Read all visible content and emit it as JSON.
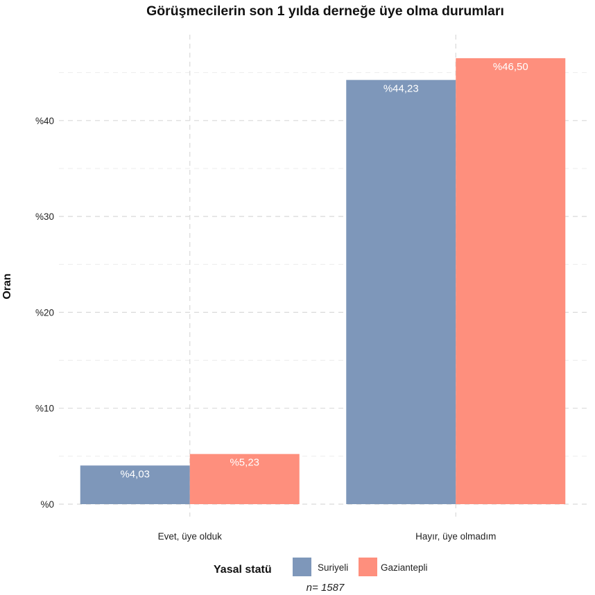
{
  "chart_data": {
    "type": "bar",
    "title": "Görüşmecilerin son 1 yılda derneğe üye olma durumları",
    "ylabel": "Oran",
    "xlabel": "",
    "categories": [
      "Evet, üye olduk",
      "Hayır, üye olmadım"
    ],
    "series": [
      {
        "name": "Suriyeli",
        "color": "#7e97ba",
        "values": [
          4.03,
          44.23
        ],
        "labels": [
          "%4,03",
          "%44,23"
        ]
      },
      {
        "name": "Gaziantepli",
        "color": "#fe8f7d",
        "values": [
          5.23,
          46.5
        ],
        "labels": [
          "%5,23",
          "%46,50"
        ]
      }
    ],
    "ylim": [
      0,
      47.2
    ],
    "yticks": [
      0,
      10,
      20,
      30,
      40
    ],
    "ytick_labels": [
      "%0",
      "%10",
      "%20",
      "%30",
      "%40"
    ],
    "grid": true,
    "legend": {
      "title": "Yasal statü",
      "position": "bottom"
    },
    "caption": "n= 1587"
  }
}
